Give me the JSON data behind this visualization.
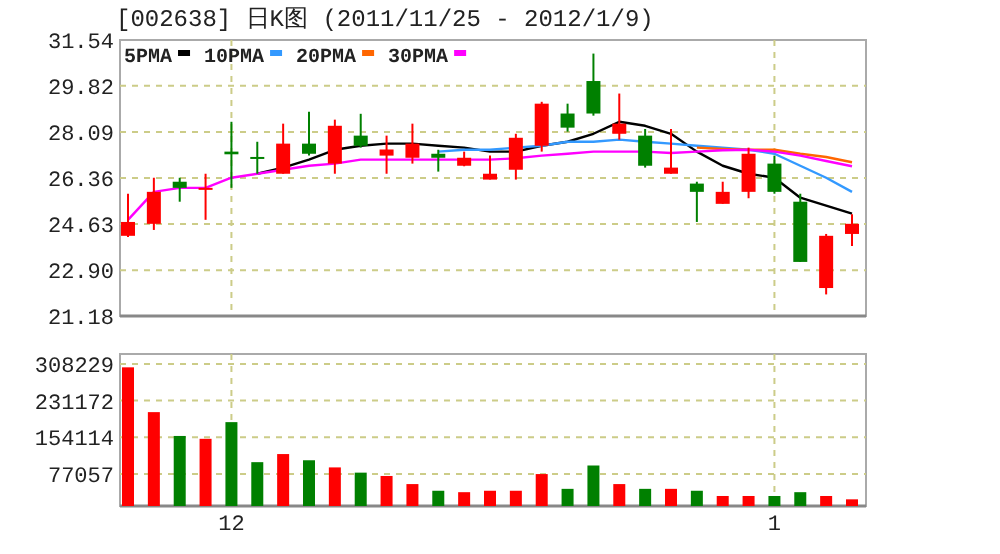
{
  "chart_data": [
    {
      "type": "candlestick",
      "title": "[002638] 日K图 (2011/11/25 - 2012/1/9)",
      "categories": [
        null,
        null,
        null,
        null,
        "12",
        null,
        null,
        null,
        null,
        null,
        null,
        null,
        null,
        null,
        null,
        null,
        null,
        null,
        null,
        null,
        null,
        null,
        null,
        null,
        null,
        "1",
        null,
        null,
        null
      ],
      "ohlc": [
        [
          24.19,
          25.77,
          24.15,
          24.71
        ],
        [
          24.64,
          26.37,
          24.41,
          25.84
        ],
        [
          26.22,
          26.37,
          25.47,
          25.99
        ],
        [
          25.99,
          26.52,
          24.79,
          25.99
        ],
        [
          27.35,
          28.47,
          25.99,
          27.25
        ],
        [
          27.15,
          27.72,
          26.52,
          27.1
        ],
        [
          26.52,
          28.4,
          26.52,
          27.65
        ],
        [
          27.65,
          28.85,
          27.2,
          27.27
        ],
        [
          26.9,
          28.55,
          26.52,
          28.32
        ],
        [
          27.95,
          28.77,
          27.5,
          27.57
        ],
        [
          27.2,
          27.95,
          26.52,
          27.43
        ],
        [
          27.12,
          28.4,
          26.9,
          27.65
        ],
        [
          27.27,
          27.42,
          26.6,
          27.12
        ],
        [
          26.82,
          27.35,
          26.8,
          27.12
        ],
        [
          26.3,
          27.2,
          26.3,
          26.52
        ],
        [
          26.67,
          28.02,
          26.3,
          27.87
        ],
        [
          27.57,
          29.22,
          27.35,
          29.15
        ],
        [
          28.78,
          29.15,
          28.1,
          28.25
        ],
        [
          30.0,
          31.03,
          28.7,
          28.78
        ],
        [
          28.02,
          29.53,
          27.8,
          28.4
        ],
        [
          27.95,
          28.2,
          26.75,
          26.82
        ],
        [
          26.52,
          28.2,
          26.52,
          26.75
        ],
        [
          26.15,
          26.22,
          24.71,
          25.84
        ],
        [
          25.39,
          26.22,
          25.39,
          25.84
        ],
        [
          25.84,
          27.5,
          25.6,
          27.27
        ],
        [
          26.9,
          27.2,
          25.77,
          25.84
        ],
        [
          25.47,
          25.77,
          23.21,
          23.21
        ],
        [
          22.23,
          24.26,
          21.99,
          24.19
        ],
        [
          24.26,
          25.0,
          23.81,
          24.64
        ]
      ],
      "colors": [
        "#ff0000",
        "#ff0000",
        "#008000",
        "#ff0000",
        "#008000",
        "#008000",
        "#ff0000",
        "#008000",
        "#ff0000",
        "#008000",
        "#ff0000",
        "#ff0000",
        "#008000",
        "#ff0000",
        "#ff0000",
        "#ff0000",
        "#ff0000",
        "#008000",
        "#008000",
        "#ff0000",
        "#008000",
        "#ff0000",
        "#008000",
        "#ff0000",
        "#ff0000",
        "#008000",
        "#008000",
        "#ff0000",
        "#ff0000"
      ],
      "series": [
        {
          "name": "5PMA",
          "type": "line",
          "color": "#000000",
          "values": [
            null,
            null,
            null,
            null,
            null,
            26.52,
            26.75,
            27.05,
            27.42,
            27.57,
            27.65,
            27.65,
            27.57,
            27.5,
            27.35,
            27.35,
            27.57,
            27.72,
            28.02,
            28.47,
            28.32,
            28.02,
            27.35,
            26.82,
            26.52,
            26.37,
            25.62,
            25.32,
            25.02
          ]
        },
        {
          "name": "10PMA",
          "type": "line",
          "color": "#3399ff",
          "values": [
            null,
            null,
            null,
            null,
            null,
            null,
            null,
            null,
            null,
            null,
            null,
            null,
            27.35,
            27.42,
            27.42,
            27.5,
            27.57,
            27.72,
            27.72,
            27.8,
            27.72,
            27.65,
            27.57,
            27.5,
            27.42,
            27.27,
            26.82,
            26.37,
            25.84
          ]
        },
        {
          "name": "20PMA",
          "type": "line",
          "color": "#ff6600",
          "values": [
            null,
            null,
            null,
            null,
            null,
            null,
            null,
            null,
            null,
            null,
            null,
            null,
            null,
            null,
            null,
            null,
            null,
            null,
            null,
            null,
            null,
            null,
            27.5,
            27.45,
            27.42,
            27.42,
            27.27,
            27.15,
            26.95
          ]
        },
        {
          "name": "30PMA",
          "type": "line",
          "color": "#ff00ff",
          "values": [
            24.79,
            25.84,
            25.99,
            25.99,
            26.37,
            26.52,
            26.67,
            26.82,
            26.9,
            27.05,
            27.05,
            27.05,
            27.05,
            27.05,
            27.05,
            27.1,
            27.2,
            27.27,
            27.35,
            27.35,
            27.35,
            27.3,
            27.35,
            27.4,
            27.42,
            27.35,
            27.2,
            27.0,
            26.8
          ]
        }
      ],
      "ylim": [
        21.18,
        31.54
      ],
      "yticks": [
        21.18,
        {
          "value": 22.9,
          "label": "22.90"
        },
        24.63,
        26.36,
        28.09,
        29.82,
        31.54
      ],
      "grid": true,
      "legend": "top left",
      "tick_labels": "y"
    },
    {
      "type": "bar",
      "categories": [
        null,
        null,
        null,
        null,
        "12",
        null,
        null,
        null,
        null,
        null,
        null,
        null,
        null,
        null,
        null,
        null,
        null,
        null,
        null,
        null,
        null,
        null,
        null,
        null,
        null,
        "1",
        null,
        null,
        null
      ],
      "values": [
        301000,
        207000,
        157000,
        151000,
        186000,
        102000,
        119000,
        106000,
        91000,
        80000,
        73000,
        56000,
        42000,
        39000,
        42000,
        42000,
        77000,
        46000,
        95000,
        56000,
        46000,
        46000,
        42000,
        31000,
        31000,
        31000,
        39000,
        31000,
        24000
      ],
      "colors": [
        "#ff0000",
        "#ff0000",
        "#008000",
        "#ff0000",
        "#008000",
        "#008000",
        "#ff0000",
        "#008000",
        "#ff0000",
        "#008000",
        "#ff0000",
        "#ff0000",
        "#008000",
        "#ff0000",
        "#ff0000",
        "#ff0000",
        "#ff0000",
        "#008000",
        "#008000",
        "#ff0000",
        "#008000",
        "#ff0000",
        "#008000",
        "#ff0000",
        "#ff0000",
        "#008000",
        "#008000",
        "#ff0000",
        "#ff0000"
      ],
      "ylim": [
        10000,
        329000
      ],
      "yticks": [
        77057,
        154114,
        231172,
        308229
      ],
      "grid": true
    }
  ]
}
